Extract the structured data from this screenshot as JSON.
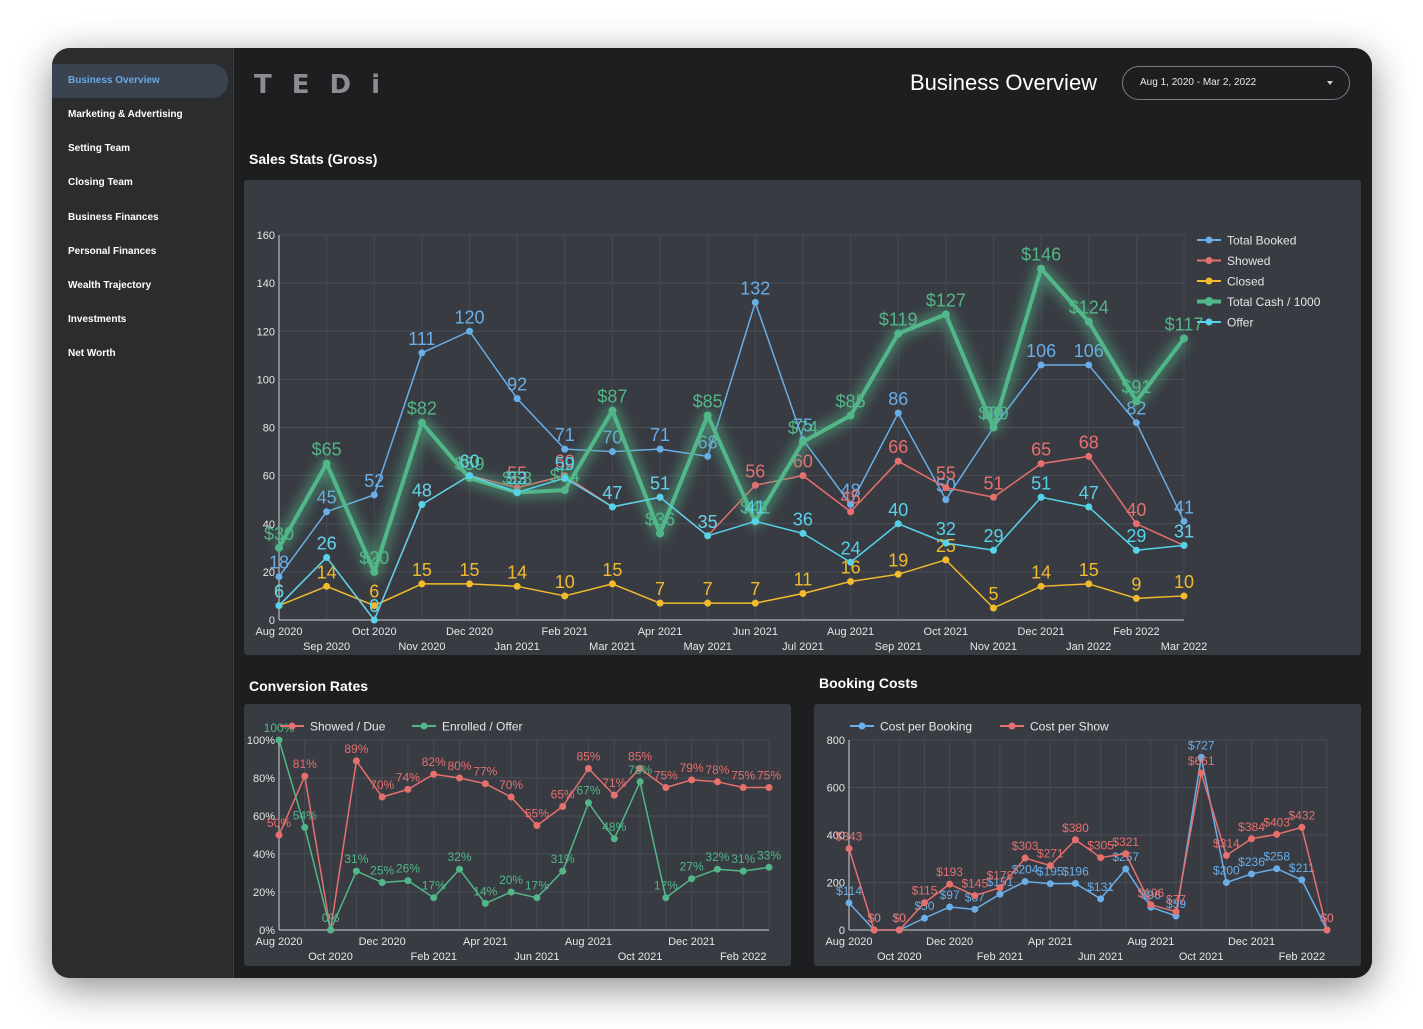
{
  "app": {
    "logo_text": "TEDi"
  },
  "sidebar": {
    "items": [
      {
        "label": "Business Overview",
        "active": true
      },
      {
        "label": "Marketing & Advertising",
        "active": false
      },
      {
        "label": "Setting Team",
        "active": false
      },
      {
        "label": "Closing Team",
        "active": false
      },
      {
        "label": "Business Finances",
        "active": false
      },
      {
        "label": "Personal Finances",
        "active": false
      },
      {
        "label": "Wealth Trajectory",
        "active": false
      },
      {
        "label": "Investments",
        "active": false
      },
      {
        "label": "Net Worth",
        "active": false
      }
    ]
  },
  "header": {
    "title": "Business Overview",
    "date_range": "Aug 1, 2020 - Mar 2, 2022"
  },
  "sections": {
    "sales_stats": "Sales Stats (Gross)",
    "conversion_rates": "Conversion Rates",
    "booking_costs": "Booking Costs"
  },
  "colors": {
    "blue": "#6aaee8",
    "red": "#e6706e",
    "yellow": "#f2bb2e",
    "green": "#52b788",
    "cyan": "#56d2ea",
    "panel": "#383b42",
    "grid": "#4a4e56"
  },
  "chart_data": [
    {
      "id": "sales",
      "type": "line",
      "categories": [
        "Aug 2020",
        "Sep 2020",
        "Oct 2020",
        "Nov 2020",
        "Dec 2020",
        "Jan 2021",
        "Feb 2021",
        "Mar 2021",
        "Apr 2021",
        "May 2021",
        "Jun 2021",
        "Jul 2021",
        "Aug 2021",
        "Sep 2021",
        "Oct 2021",
        "Nov 2021",
        "Dec 2021",
        "Jan 2022",
        "Feb 2022",
        "Mar 2022"
      ],
      "ylim": [
        0,
        160
      ],
      "yticks": [
        0,
        20,
        40,
        60,
        80,
        100,
        120,
        140,
        160
      ],
      "legend_position": "top-right",
      "series": [
        {
          "name": "Total Booked",
          "color": "#6aaee8",
          "prefix": "",
          "values": [
            18,
            45,
            52,
            111,
            120,
            92,
            71,
            70,
            71,
            68,
            132,
            75,
            48,
            86,
            50,
            80,
            106,
            106,
            82,
            41
          ]
        },
        {
          "name": "Showed",
          "color": "#e6706e",
          "prefix": "",
          "values": [
            6,
            26,
            0,
            48,
            60,
            55,
            60,
            47,
            51,
            35,
            56,
            60,
            45,
            66,
            55,
            51,
            65,
            68,
            40,
            31
          ]
        },
        {
          "name": "Closed",
          "color": "#f2bb2e",
          "prefix": "",
          "values": [
            6,
            14,
            6,
            15,
            15,
            14,
            10,
            15,
            7,
            7,
            7,
            11,
            16,
            19,
            25,
            5,
            14,
            15,
            9,
            10
          ]
        },
        {
          "name": "Total Cash / 1000",
          "color": "#52b788",
          "prefix": "$",
          "glow": true,
          "values": [
            30,
            65,
            20,
            82,
            59,
            53,
            54,
            87,
            36,
            85,
            41,
            74,
            85,
            119,
            127,
            80,
            146,
            124,
            91,
            117
          ]
        },
        {
          "name": "Offer",
          "color": "#56d2ea",
          "prefix": "",
          "values": [
            6,
            26,
            0,
            48,
            60,
            53,
            59,
            47,
            51,
            35,
            41,
            36,
            24,
            40,
            32,
            29,
            51,
            47,
            29,
            31
          ]
        }
      ]
    },
    {
      "id": "conversion",
      "type": "line",
      "categories": [
        "Aug 2020",
        "Sep 2020",
        "Oct 2020",
        "Nov 2020",
        "Dec 2020",
        "Jan 2021",
        "Feb 2021",
        "Mar 2021",
        "Apr 2021",
        "May 2021",
        "Jun 2021",
        "Jul 2021",
        "Aug 2021",
        "Sep 2021",
        "Oct 2021",
        "Nov 2021",
        "Dec 2021",
        "Jan 2022",
        "Feb 2022",
        "Mar 2022"
      ],
      "ylim": [
        0,
        100
      ],
      "yticks": [
        0,
        20,
        40,
        60,
        80,
        100
      ],
      "ytick_suffix": "%",
      "legend_position": "top-left",
      "series": [
        {
          "name": "Showed / Due",
          "color": "#e6706e",
          "suffix": "%",
          "values": [
            50,
            81,
            0,
            89,
            70,
            74,
            82,
            80,
            77,
            70,
            55,
            65,
            85,
            71,
            85,
            75,
            79,
            78,
            75,
            75
          ]
        },
        {
          "name": "Enrolled / Offer",
          "color": "#52b788",
          "suffix": "%",
          "values": [
            100,
            54,
            0,
            31,
            25,
            26,
            17,
            32,
            14,
            20,
            17,
            31,
            67,
            48,
            78,
            17,
            27,
            32,
            31,
            33
          ]
        }
      ]
    },
    {
      "id": "booking",
      "type": "line",
      "categories": [
        "Aug 2020",
        "Sep 2020",
        "Oct 2020",
        "Nov 2020",
        "Dec 2020",
        "Jan 2021",
        "Feb 2021",
        "Mar 2021",
        "Apr 2021",
        "May 2021",
        "Jun 2021",
        "Jul 2021",
        "Aug 2021",
        "Sep 2021",
        "Oct 2021",
        "Nov 2021",
        "Dec 2021",
        "Jan 2022",
        "Feb 2022",
        "Mar 2022"
      ],
      "ylim": [
        0,
        800
      ],
      "yticks": [
        0,
        200,
        400,
        600,
        800
      ],
      "legend_position": "top-left",
      "series": [
        {
          "name": "Cost per Booking",
          "color": "#6aaee8",
          "prefix": "$",
          "values": [
            114,
            0,
            0,
            50,
            97,
            87,
            151,
            204,
            195,
            196,
            131,
            257,
            96,
            59,
            727,
            200,
            236,
            258,
            211,
            0
          ]
        },
        {
          "name": "Cost per Show",
          "color": "#e6706e",
          "prefix": "$",
          "values": [
            343,
            0,
            0,
            115,
            193,
            145,
            178,
            303,
            271,
            380,
            305,
            321,
            106,
            77,
            661,
            314,
            384,
            403,
            432,
            0
          ]
        }
      ]
    }
  ]
}
